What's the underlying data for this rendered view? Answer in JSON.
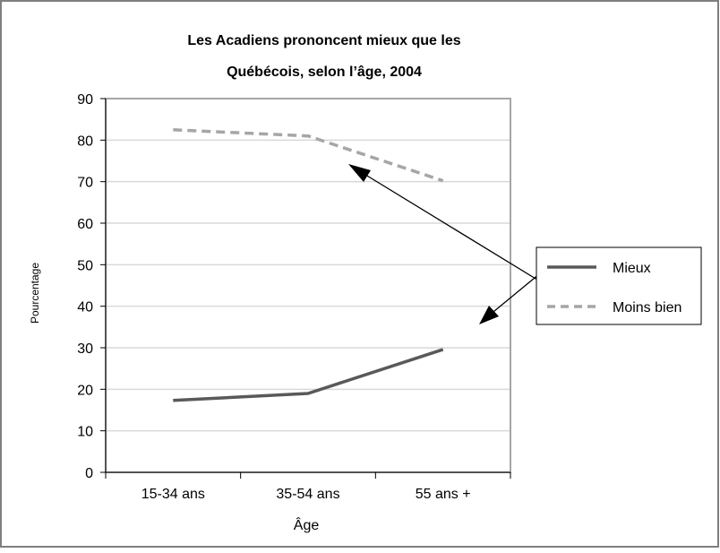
{
  "chart_data": {
    "type": "line",
    "title_line1": "Les Acadiens prononcent mieux que les",
    "title_line2": "Québécois, selon l’âge, 2004",
    "xlabel": "Âge",
    "ylabel": "Pourcentage",
    "categories": [
      "15-34 ans",
      "35-54 ans",
      "55 ans +"
    ],
    "ylim": [
      0,
      90
    ],
    "yticks": [
      0,
      10,
      20,
      30,
      40,
      50,
      60,
      70,
      80,
      90
    ],
    "grid": true,
    "legend_position": "right",
    "series": [
      {
        "name": "Mieux",
        "values": [
          17.3,
          19.0,
          29.6
        ],
        "color": "#595959",
        "dash": "solid"
      },
      {
        "name": "Moins bien",
        "values": [
          82.5,
          81.0,
          70.2
        ],
        "color": "#a6a6a6",
        "dash": "dashed"
      }
    ],
    "colors": {
      "frame": "#7f7f7f",
      "grid": "#d9d9d9",
      "plot_border": "#a6a6a6",
      "text": "#000000"
    }
  }
}
